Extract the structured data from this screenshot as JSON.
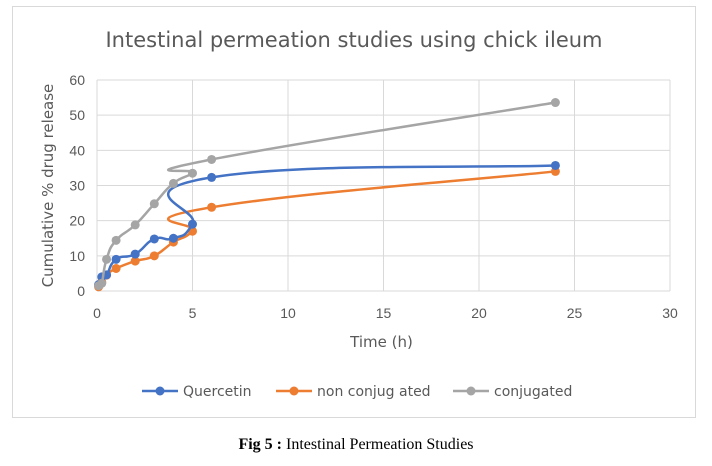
{
  "chart_data": {
    "type": "line",
    "title": "Intestinal permeation studies using chick ileum",
    "xlabel": "Time (h)",
    "ylabel": "Cumulative % drug release",
    "xlim": [
      0,
      30
    ],
    "ylim": [
      0,
      60
    ],
    "xticks": [
      0,
      5,
      10,
      15,
      20,
      25,
      30
    ],
    "yticks": [
      0,
      10,
      20,
      30,
      40,
      50,
      60
    ],
    "grid": true,
    "legend_position": "bottom",
    "series": [
      {
        "name": "Quercetin",
        "color": "#4472c4",
        "x": [
          0.083,
          0.25,
          0.5,
          1,
          2,
          3,
          4,
          5,
          6,
          24
        ],
        "y": [
          1.8,
          4.0,
          4.6,
          9.0,
          10.5,
          14.8,
          15.0,
          19.0,
          32.3,
          35.7
        ]
      },
      {
        "name": "non conjug ated",
        "color": "#ed7d31",
        "x": [
          0.083,
          0.25,
          0.5,
          1,
          2,
          3,
          4,
          5,
          6,
          24
        ],
        "y": [
          1.2,
          2.5,
          4.5,
          6.4,
          8.5,
          10.0,
          13.9,
          17.0,
          23.8,
          34.0
        ]
      },
      {
        "name": "conjugated",
        "color": "#a5a5a5",
        "x": [
          0.083,
          0.25,
          0.5,
          1,
          2,
          3,
          4,
          5,
          6,
          24
        ],
        "y": [
          1.5,
          2.2,
          9.0,
          14.4,
          18.8,
          24.8,
          30.6,
          33.5,
          37.4,
          53.6
        ]
      }
    ]
  },
  "caption": {
    "label": "Fig 5 :",
    "text": " Intestinal Permeation Studies"
  }
}
